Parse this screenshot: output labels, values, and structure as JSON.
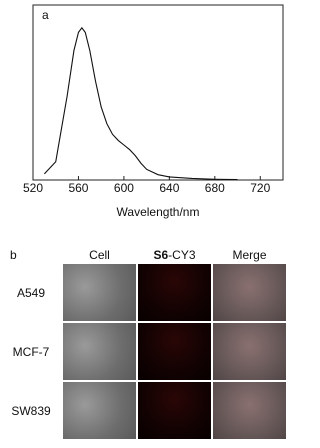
{
  "panel_a": {
    "label": "a",
    "chart_data": {
      "type": "line",
      "xlabel": "Wavelength/nm",
      "x": [
        530,
        540,
        550,
        556,
        560,
        563,
        566,
        570,
        575,
        580,
        585,
        590,
        595,
        600,
        605,
        610,
        615,
        620,
        630,
        640,
        660,
        680,
        700
      ],
      "series": [
        {
          "color": "#111111",
          "values": [
            0.04,
            0.12,
            0.55,
            0.85,
            0.97,
            1.0,
            0.97,
            0.85,
            0.65,
            0.48,
            0.37,
            0.3,
            0.26,
            0.23,
            0.2,
            0.16,
            0.11,
            0.07,
            0.035,
            0.02,
            0.01,
            0.005,
            0.003
          ]
        }
      ],
      "xlim": [
        520,
        740
      ],
      "ylim": [
        0,
        1.15
      ],
      "xticks": [
        520,
        560,
        600,
        640,
        680,
        720
      ]
    }
  },
  "panel_b": {
    "label": "b",
    "columns": [
      {
        "label": "Cell"
      },
      {
        "label_bold": "S6",
        "label": "-CY3"
      },
      {
        "label": "Merge"
      }
    ],
    "rows": [
      "A549",
      "MCF-7",
      "SW839"
    ]
  }
}
